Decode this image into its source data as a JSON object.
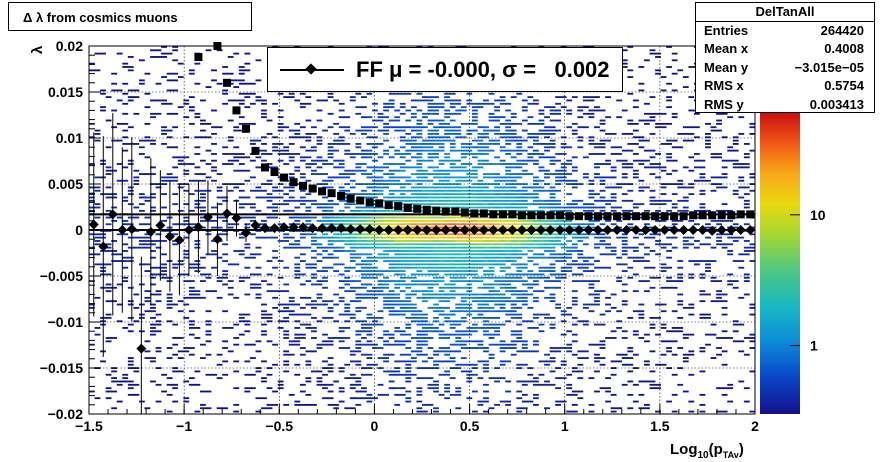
{
  "title": "Δ λ from cosmics muons",
  "stats": {
    "name": "DelTanAll",
    "rows": [
      {
        "label": "Entries",
        "value": "264420"
      },
      {
        "label": "Mean x",
        "value": "0.4008"
      },
      {
        "label": "Mean y",
        "value": "−3.015e−05"
      },
      {
        "label": "RMS x",
        "value": "0.5754"
      },
      {
        "label": "RMS y",
        "value": "0.003413"
      }
    ]
  },
  "legend": {
    "entry": "FF μ = -0.000, σ =   0.002"
  },
  "colors": {
    "profile": "#000000",
    "palette_low": "#1a1a8c",
    "palette_mid": "#c8dc00",
    "palette_high": "#cc1010"
  },
  "chart_data": {
    "type": "heatmap",
    "xlabel": "Log",
    "xlabel_sub": "10",
    "xlabel_rest": "(p",
    "xlabel_sub2": "TAv",
    "xlabel_end": ")",
    "ylabel": "λ",
    "xlim": [
      -1.5,
      2.0
    ],
    "ylim": [
      -0.02,
      0.02
    ],
    "x_ticks": [
      "−1.5",
      "−1",
      "−0.5",
      "0",
      "0.5",
      "1",
      "1.5",
      "2"
    ],
    "x_tick_values": [
      -1.5,
      -1.0,
      -0.5,
      0.0,
      0.5,
      1.0,
      1.5,
      2.0
    ],
    "y_ticks": [
      "−0.02",
      "−0.015",
      "−0.01",
      "−0.005",
      "0",
      "0.005",
      "0.01",
      "0.015",
      "0.02"
    ],
    "y_tick_values": [
      -0.02,
      -0.015,
      -0.01,
      -0.005,
      0.0,
      0.005,
      0.01,
      0.015,
      0.02
    ],
    "colorbar_ticks": [
      "1",
      "10"
    ],
    "colorbar_scale": "log",
    "grid": true,
    "fit_line_y": 0.0017,
    "zero_line_y": 0.0,
    "series": [
      {
        "name": "FF μ = -0.000, σ =   0.002",
        "marker": "diamond",
        "x": [
          -1.475,
          -1.425,
          -1.375,
          -1.325,
          -1.275,
          -1.225,
          -1.175,
          -1.125,
          -1.075,
          -1.025,
          -0.975,
          -0.925,
          -0.875,
          -0.825,
          -0.775,
          -0.725,
          -0.675,
          -0.625,
          -0.575,
          -0.525,
          -0.475,
          -0.425,
          -0.375,
          -0.325,
          -0.275,
          -0.225,
          -0.175,
          -0.125,
          -0.075,
          -0.025,
          0.025,
          0.075,
          0.125,
          0.175,
          0.225,
          0.275,
          0.325,
          0.375,
          0.425,
          0.475,
          0.525,
          0.575,
          0.625,
          0.675,
          0.725,
          0.775,
          0.825,
          0.875,
          0.925,
          0.975,
          1.025,
          1.075,
          1.125,
          1.175,
          1.225,
          1.275,
          1.325,
          1.375,
          1.425,
          1.475,
          1.525,
          1.575,
          1.625,
          1.675,
          1.725,
          1.775,
          1.825,
          1.875,
          1.925,
          1.975
        ],
        "y": [
          0.0006,
          -0.0018,
          0.0017,
          0.0,
          0.0001,
          -0.0129,
          -0.0002,
          0.0005,
          -0.0007,
          -0.0011,
          0.0,
          0.0003,
          0.0014,
          -0.001,
          0.0018,
          0.0013,
          -0.0003,
          0.0005,
          0.0002,
          0.0002,
          0.0003,
          0.0003,
          0.0003,
          0.0002,
          0.0002,
          0.0002,
          0.0002,
          0.0001,
          0.0001,
          0.0001,
          0.0,
          0.0,
          0.0,
          0.0,
          0.0,
          0.0,
          0.0,
          0.0,
          0.0,
          0.0,
          0.0,
          0.0,
          0.0,
          0.0,
          0.0,
          0.0,
          0.0,
          0.0,
          0.0,
          0.0,
          0.0,
          0.0,
          0.0,
          0.0,
          0.0,
          0.0,
          0.0,
          0.0,
          0.0,
          0.0,
          0.0,
          0.0,
          0.0,
          0.0,
          0.0,
          -0.0001,
          0.0,
          0.0,
          0.0,
          0.0
        ],
        "err": [
          0.01,
          0.012,
          0.011,
          0.009,
          0.01,
          0.01,
          0.008,
          0.006,
          0.006,
          0.006,
          0.005,
          0.005,
          0.004,
          0.004,
          0.003,
          0.002,
          0.001,
          0.0006,
          0.0004,
          0.0002,
          0.0002,
          0.0002,
          0.0002,
          0.0,
          0.0,
          0.0,
          0.0,
          0.0,
          0.0,
          0.0,
          0.0,
          0.0,
          0.0,
          0.0,
          0.0,
          0.0,
          0.0,
          0.0,
          0.0,
          0.0,
          0.0,
          0.0,
          0.0,
          0.0,
          0.0,
          0.0,
          0.0,
          0.0,
          0.0,
          0.0,
          0.0,
          0.0,
          0.0,
          0.0,
          0.0,
          0.0,
          0.0,
          0.0,
          0.0,
          0.0,
          0.0,
          0.0,
          0.0,
          0.0,
          0.0,
          0.0,
          0.0,
          0.0,
          0.0,
          0.0
        ]
      },
      {
        "name": "",
        "marker": "square",
        "x": [
          -0.925,
          -0.825,
          -0.775,
          -0.725,
          -0.675,
          -0.625,
          -0.575,
          -0.525,
          -0.475,
          -0.425,
          -0.375,
          -0.325,
          -0.275,
          -0.225,
          -0.175,
          -0.125,
          -0.075,
          -0.025,
          0.025,
          0.075,
          0.125,
          0.175,
          0.225,
          0.275,
          0.325,
          0.375,
          0.425,
          0.475,
          0.525,
          0.575,
          0.625,
          0.675,
          0.725,
          0.775,
          0.825,
          0.875,
          0.925,
          0.975,
          1.025,
          1.075,
          1.125,
          1.175,
          1.225,
          1.275,
          1.325,
          1.375,
          1.425,
          1.475,
          1.525,
          1.575,
          1.625,
          1.675,
          1.725,
          1.775,
          1.825,
          1.875,
          1.925,
          1.975
        ],
        "y": [
          0.0188,
          0.02,
          0.016,
          0.013,
          0.011,
          0.0086,
          0.0068,
          0.0063,
          0.0057,
          0.0052,
          0.0048,
          0.0045,
          0.0042,
          0.004,
          0.0037,
          0.0034,
          0.0032,
          0.003,
          0.0029,
          0.0027,
          0.0026,
          0.0024,
          0.0023,
          0.0022,
          0.0021,
          0.002,
          0.002,
          0.0019,
          0.0018,
          0.0018,
          0.0017,
          0.0017,
          0.0017,
          0.0016,
          0.0016,
          0.0016,
          0.0016,
          0.0016,
          0.0015,
          0.0015,
          0.0015,
          0.0015,
          0.0015,
          0.0015,
          0.0015,
          0.0015,
          0.0015,
          0.0015,
          0.0015,
          0.0015,
          0.0015,
          0.0016,
          0.0016,
          0.0016,
          0.0016,
          0.0016,
          0.0017,
          0.0017
        ]
      }
    ]
  }
}
